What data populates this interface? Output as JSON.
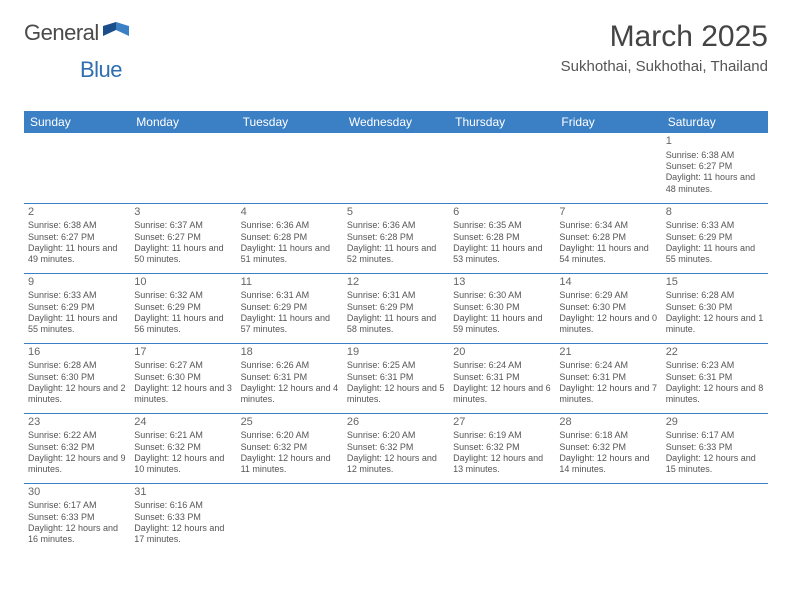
{
  "logo": {
    "general": "General",
    "blue": "Blue"
  },
  "title": "March 2025",
  "location": "Sukhothai, Sukhothai, Thailand",
  "colors": {
    "header_bg": "#3b7fc4",
    "header_text": "#ffffff",
    "border": "#3b7fc4",
    "body_text": "#555555",
    "title_text": "#444444",
    "logo_dark": "#4a4a4a",
    "logo_blue": "#2f6fb0"
  },
  "columns": [
    "Sunday",
    "Monday",
    "Tuesday",
    "Wednesday",
    "Thursday",
    "Friday",
    "Saturday"
  ],
  "weeks": [
    [
      null,
      null,
      null,
      null,
      null,
      null,
      {
        "d": "1",
        "sr": "6:38 AM",
        "ss": "6:27 PM",
        "dl": "11 hours and 48 minutes."
      }
    ],
    [
      {
        "d": "2",
        "sr": "6:38 AM",
        "ss": "6:27 PM",
        "dl": "11 hours and 49 minutes."
      },
      {
        "d": "3",
        "sr": "6:37 AM",
        "ss": "6:27 PM",
        "dl": "11 hours and 50 minutes."
      },
      {
        "d": "4",
        "sr": "6:36 AM",
        "ss": "6:28 PM",
        "dl": "11 hours and 51 minutes."
      },
      {
        "d": "5",
        "sr": "6:36 AM",
        "ss": "6:28 PM",
        "dl": "11 hours and 52 minutes."
      },
      {
        "d": "6",
        "sr": "6:35 AM",
        "ss": "6:28 PM",
        "dl": "11 hours and 53 minutes."
      },
      {
        "d": "7",
        "sr": "6:34 AM",
        "ss": "6:28 PM",
        "dl": "11 hours and 54 minutes."
      },
      {
        "d": "8",
        "sr": "6:33 AM",
        "ss": "6:29 PM",
        "dl": "11 hours and 55 minutes."
      }
    ],
    [
      {
        "d": "9",
        "sr": "6:33 AM",
        "ss": "6:29 PM",
        "dl": "11 hours and 55 minutes."
      },
      {
        "d": "10",
        "sr": "6:32 AM",
        "ss": "6:29 PM",
        "dl": "11 hours and 56 minutes."
      },
      {
        "d": "11",
        "sr": "6:31 AM",
        "ss": "6:29 PM",
        "dl": "11 hours and 57 minutes."
      },
      {
        "d": "12",
        "sr": "6:31 AM",
        "ss": "6:29 PM",
        "dl": "11 hours and 58 minutes."
      },
      {
        "d": "13",
        "sr": "6:30 AM",
        "ss": "6:30 PM",
        "dl": "11 hours and 59 minutes."
      },
      {
        "d": "14",
        "sr": "6:29 AM",
        "ss": "6:30 PM",
        "dl": "12 hours and 0 minutes."
      },
      {
        "d": "15",
        "sr": "6:28 AM",
        "ss": "6:30 PM",
        "dl": "12 hours and 1 minute."
      }
    ],
    [
      {
        "d": "16",
        "sr": "6:28 AM",
        "ss": "6:30 PM",
        "dl": "12 hours and 2 minutes."
      },
      {
        "d": "17",
        "sr": "6:27 AM",
        "ss": "6:30 PM",
        "dl": "12 hours and 3 minutes."
      },
      {
        "d": "18",
        "sr": "6:26 AM",
        "ss": "6:31 PM",
        "dl": "12 hours and 4 minutes."
      },
      {
        "d": "19",
        "sr": "6:25 AM",
        "ss": "6:31 PM",
        "dl": "12 hours and 5 minutes."
      },
      {
        "d": "20",
        "sr": "6:24 AM",
        "ss": "6:31 PM",
        "dl": "12 hours and 6 minutes."
      },
      {
        "d": "21",
        "sr": "6:24 AM",
        "ss": "6:31 PM",
        "dl": "12 hours and 7 minutes."
      },
      {
        "d": "22",
        "sr": "6:23 AM",
        "ss": "6:31 PM",
        "dl": "12 hours and 8 minutes."
      }
    ],
    [
      {
        "d": "23",
        "sr": "6:22 AM",
        "ss": "6:32 PM",
        "dl": "12 hours and 9 minutes."
      },
      {
        "d": "24",
        "sr": "6:21 AM",
        "ss": "6:32 PM",
        "dl": "12 hours and 10 minutes."
      },
      {
        "d": "25",
        "sr": "6:20 AM",
        "ss": "6:32 PM",
        "dl": "12 hours and 11 minutes."
      },
      {
        "d": "26",
        "sr": "6:20 AM",
        "ss": "6:32 PM",
        "dl": "12 hours and 12 minutes."
      },
      {
        "d": "27",
        "sr": "6:19 AM",
        "ss": "6:32 PM",
        "dl": "12 hours and 13 minutes."
      },
      {
        "d": "28",
        "sr": "6:18 AM",
        "ss": "6:32 PM",
        "dl": "12 hours and 14 minutes."
      },
      {
        "d": "29",
        "sr": "6:17 AM",
        "ss": "6:33 PM",
        "dl": "12 hours and 15 minutes."
      }
    ],
    [
      {
        "d": "30",
        "sr": "6:17 AM",
        "ss": "6:33 PM",
        "dl": "12 hours and 16 minutes."
      },
      {
        "d": "31",
        "sr": "6:16 AM",
        "ss": "6:33 PM",
        "dl": "12 hours and 17 minutes."
      },
      null,
      null,
      null,
      null,
      null
    ]
  ],
  "labels": {
    "sunrise": "Sunrise:",
    "sunset": "Sunset:",
    "daylight": "Daylight:"
  }
}
